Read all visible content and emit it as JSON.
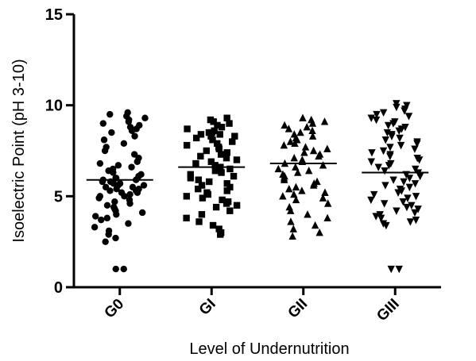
{
  "chart_data": {
    "type": "scatter",
    "subtype": "dot-plot",
    "title": "",
    "xlabel": "Level of Undernutrition",
    "ylabel": "Isoelectric Point (pH 3-10)",
    "ylim": [
      0,
      15
    ],
    "yticks": [
      "0",
      "5",
      "10",
      "15"
    ],
    "categories": [
      "G0",
      "GI",
      "GII",
      "GIII"
    ],
    "grid": false,
    "legend": "none",
    "series": [
      {
        "category": "G0",
        "marker": "circle",
        "mean": 5.9,
        "min": 1.0,
        "max": 9.6,
        "approx_values": [
          9.6,
          9.5,
          9.4,
          9.3,
          9.2,
          9.1,
          9.0,
          8.9,
          8.8,
          8.7,
          8.6,
          8.5,
          8.3,
          8.1,
          7.9,
          7.7,
          7.5,
          7.3,
          7.1,
          6.9,
          6.8,
          6.7,
          6.6,
          6.5,
          6.4,
          6.3,
          6.2,
          6.1,
          6.0,
          6.0,
          5.9,
          5.9,
          5.8,
          5.8,
          5.7,
          5.7,
          5.6,
          5.6,
          5.5,
          5.5,
          5.4,
          5.4,
          5.3,
          5.3,
          5.2,
          5.2,
          5.1,
          5.0,
          5.0,
          4.9,
          4.8,
          4.7,
          4.6,
          4.5,
          4.4,
          4.3,
          4.2,
          4.1,
          4.0,
          3.9,
          3.8,
          3.7,
          3.5,
          3.3,
          3.1,
          2.9,
          2.7,
          2.5,
          1.0,
          1.0
        ]
      },
      {
        "category": "GI",
        "marker": "square",
        "mean": 6.6,
        "min": 2.9,
        "max": 9.3,
        "approx_values": [
          9.3,
          9.2,
          9.1,
          9.0,
          8.9,
          8.8,
          8.7,
          8.6,
          8.5,
          8.5,
          8.4,
          8.4,
          8.3,
          8.3,
          8.2,
          8.1,
          8.0,
          7.9,
          7.8,
          7.7,
          7.6,
          7.5,
          7.4,
          7.3,
          7.2,
          7.1,
          7.0,
          6.9,
          6.8,
          6.7,
          6.6,
          6.5,
          6.4,
          6.3,
          6.2,
          6.1,
          6.0,
          5.9,
          5.8,
          5.7,
          5.6,
          5.5,
          5.4,
          5.3,
          5.2,
          5.1,
          5.0,
          4.9,
          4.8,
          4.7,
          4.6,
          4.5,
          4.4,
          4.2,
          4.0,
          3.8,
          3.6,
          3.4,
          3.2,
          3.0,
          2.9
        ]
      },
      {
        "category": "GII",
        "marker": "triangle-up",
        "mean": 6.8,
        "min": 2.8,
        "max": 9.3,
        "approx_values": [
          9.3,
          9.2,
          9.1,
          9.0,
          8.9,
          8.8,
          8.7,
          8.6,
          8.5,
          8.4,
          8.3,
          8.2,
          8.1,
          8.0,
          7.9,
          7.8,
          7.7,
          7.6,
          7.5,
          7.4,
          7.3,
          7.2,
          7.1,
          7.0,
          6.9,
          6.8,
          6.7,
          6.6,
          6.5,
          6.4,
          6.3,
          6.2,
          6.1,
          6.0,
          5.9,
          5.8,
          5.7,
          5.6,
          5.5,
          5.4,
          5.3,
          5.2,
          5.1,
          5.0,
          4.9,
          4.8,
          4.6,
          4.4,
          4.2,
          4.0,
          3.8,
          3.6,
          3.4,
          3.2,
          3.0,
          2.8
        ]
      },
      {
        "category": "GIII",
        "marker": "triangle-down",
        "mean": 6.3,
        "min": 1.0,
        "max": 10.1,
        "approx_values": [
          10.1,
          10.0,
          9.9,
          9.8,
          9.7,
          9.6,
          9.5,
          9.4,
          9.3,
          9.2,
          9.1,
          9.0,
          8.9,
          8.8,
          8.7,
          8.6,
          8.5,
          8.4,
          8.3,
          8.2,
          8.1,
          8.0,
          7.9,
          7.8,
          7.7,
          7.6,
          7.5,
          7.4,
          7.3,
          7.2,
          7.1,
          7.0,
          6.9,
          6.8,
          6.7,
          6.6,
          6.5,
          6.4,
          6.3,
          6.2,
          6.1,
          6.0,
          5.9,
          5.8,
          5.7,
          5.6,
          5.5,
          5.4,
          5.3,
          5.2,
          5.1,
          5.0,
          4.9,
          4.8,
          4.7,
          4.6,
          4.5,
          4.4,
          4.3,
          4.2,
          4.1,
          4.0,
          3.9,
          3.8,
          3.7,
          3.6,
          3.5,
          3.4,
          1.0,
          1.0
        ]
      }
    ],
    "colors": {
      "marker": "#000000",
      "axis": "#000000",
      "background": "#ffffff"
    }
  }
}
